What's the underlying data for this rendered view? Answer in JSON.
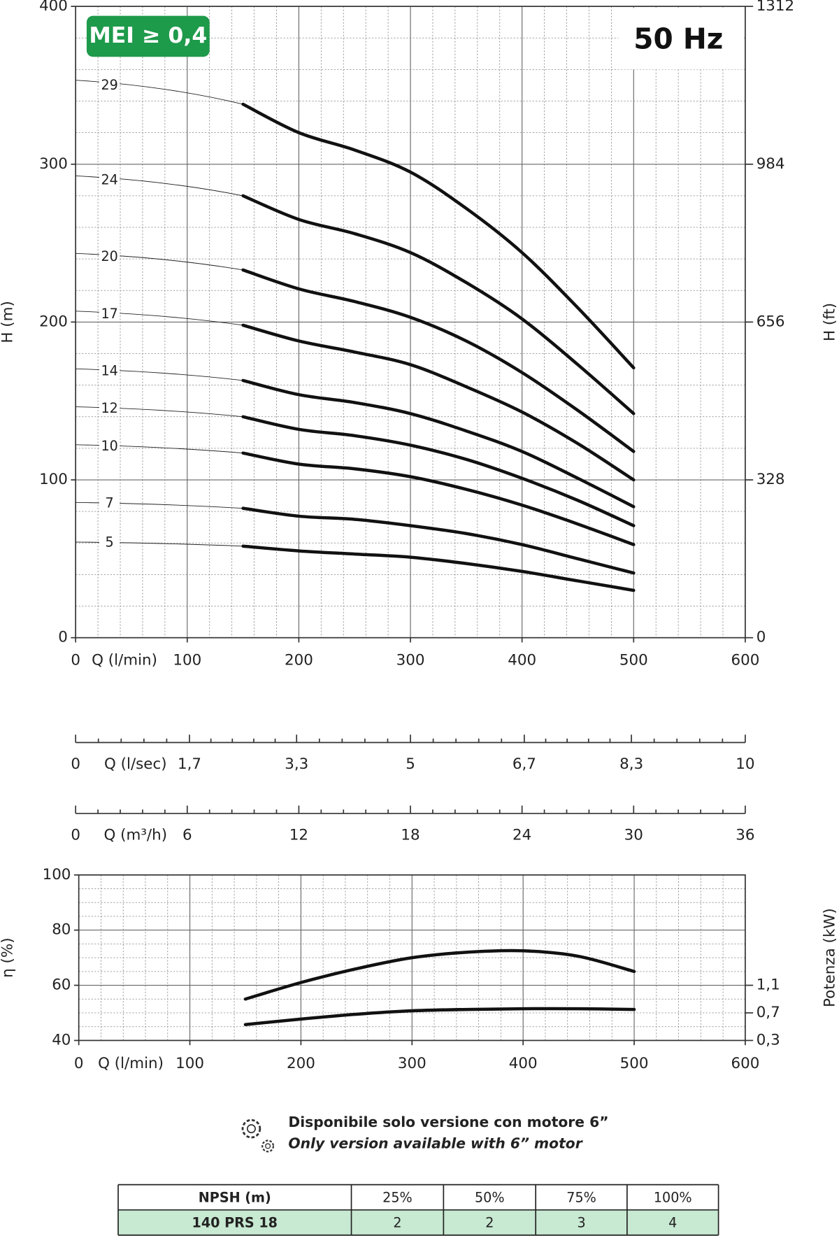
{
  "chart_data": [
    {
      "type": "line",
      "badge": "MEI ≥ 0,4",
      "annotation": "50 Hz",
      "xlabel": "Q (l/min)",
      "ylabel": "H (m)",
      "y2label": "H (ft)",
      "x": [
        150,
        200,
        250,
        300,
        350,
        400,
        450,
        500
      ],
      "series": [
        {
          "name": "29",
          "color": "#111111",
          "values": [
            338,
            320,
            309,
            295,
            272,
            244,
            209,
            171
          ]
        },
        {
          "name": "24",
          "color": "#111111",
          "values": [
            280,
            265,
            256,
            244,
            225,
            202,
            173,
            142
          ]
        },
        {
          "name": "20",
          "color": "#111111",
          "values": [
            233,
            221,
            213,
            203,
            188,
            168,
            144,
            118
          ]
        },
        {
          "name": "17",
          "color": "#111111",
          "values": [
            198,
            188,
            181,
            173,
            159,
            143,
            123,
            100
          ]
        },
        {
          "name": "14",
          "color": "#111111",
          "values": [
            163,
            154,
            149,
            142,
            131,
            118,
            101,
            83
          ]
        },
        {
          "name": "12",
          "color": "#111111",
          "values": [
            140,
            132,
            128,
            122,
            113,
            101,
            87,
            71
          ]
        },
        {
          "name": "10",
          "color": "#111111",
          "values": [
            117,
            110,
            107,
            102,
            94,
            84,
            72,
            59
          ]
        },
        {
          "name": "7",
          "color": "#111111",
          "values": [
            82,
            77,
            75,
            71,
            66,
            59,
            50,
            41
          ]
        },
        {
          "name": "5",
          "color": "#111111",
          "values": [
            58,
            55,
            53,
            51,
            47,
            42,
            36,
            30
          ]
        }
      ],
      "xlim": [
        0,
        600
      ],
      "xticks": [
        0,
        100,
        200,
        300,
        400,
        500,
        600
      ],
      "ylim": [
        0,
        400
      ],
      "yticks": [
        0,
        100,
        200,
        300,
        400
      ],
      "y2lim": [
        0,
        1312
      ],
      "y2ticks": [
        0,
        328,
        656,
        984,
        1312
      ],
      "grid": true
    },
    {
      "type": "axis",
      "xlabel": "Q (l/sec)",
      "xlim": [
        0,
        10
      ],
      "xticks": [
        0,
        {
          "value": 1.7,
          "label": "1,7"
        },
        {
          "value": 3.3,
          "label": "3,3"
        },
        5,
        {
          "value": 6.7,
          "label": "6,7"
        },
        {
          "value": 8.3,
          "label": "8,3"
        },
        10
      ]
    },
    {
      "type": "axis",
      "xlabel": "Q (m³/h)",
      "xlim": [
        0,
        36
      ],
      "xticks": [
        0,
        6,
        12,
        18,
        24,
        30,
        36
      ]
    },
    {
      "type": "line",
      "xlabel": "Q (l/min)",
      "ylabel": "η (%)",
      "y2label": "Potenza (kW)",
      "x": [
        150,
        200,
        250,
        300,
        350,
        400,
        450,
        500
      ],
      "series": [
        {
          "color": "#111111",
          "values": [
            55,
            61,
            66,
            70,
            72,
            72.5,
            70.5,
            65
          ]
        },
        {
          "color": "#111111",
          "axis": "y2",
          "values": [
            0.53,
            0.61,
            0.68,
            0.73,
            0.75,
            0.76,
            0.76,
            0.75
          ]
        }
      ],
      "xlim": [
        0,
        600
      ],
      "xticks": [
        0,
        100,
        200,
        300,
        400,
        500,
        600
      ],
      "ylim": [
        40,
        100
      ],
      "yticks": [
        40,
        60,
        80,
        100
      ],
      "y2lim": [
        0.3,
        2.7
      ],
      "y2ticks": [
        {
          "value": 0.3,
          "label": "0,3"
        },
        {
          "value": 0.7,
          "label": "0,7"
        },
        {
          "value": 1.1,
          "label": "1,1"
        }
      ],
      "grid": true
    }
  ],
  "notes": [
    "Disponibile solo versione con motore 6”",
    "Only version available with 6” motor"
  ],
  "table": {
    "header": [
      "NPSH (m)",
      "25%",
      "50%",
      "75%",
      "100%"
    ],
    "rows": [
      [
        "140 PRS 18",
        2,
        2,
        3,
        4
      ]
    ]
  }
}
